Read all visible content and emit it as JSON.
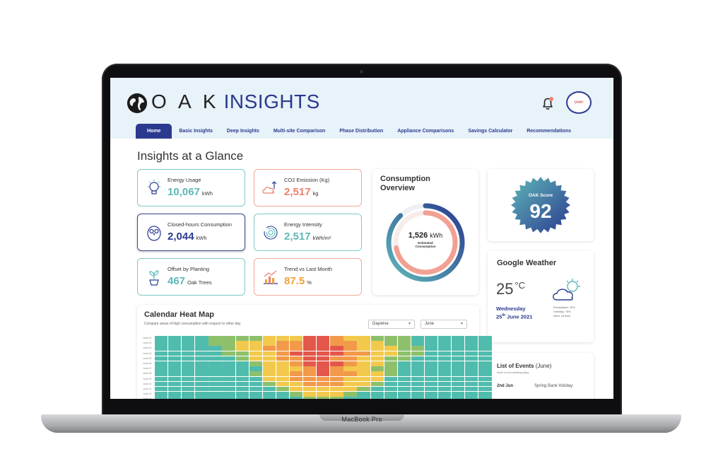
{
  "device": {
    "label": "MacBook Pro"
  },
  "app": {
    "logo_text": "O A K",
    "logo_sub": "INSIGHTS",
    "avatar_text": "oven"
  },
  "nav": {
    "tabs": [
      "Home",
      "Basic Insights",
      "Deep Insights",
      "Multi-site Comparison",
      "Phase Distribution",
      "Appliance Comparisons",
      "Savings Calculator",
      "Recommendations"
    ],
    "active": "Home"
  },
  "page": {
    "title": "Insights at a Glance"
  },
  "metrics": [
    {
      "label": "Energy Usage",
      "value": "10,067",
      "unit": "kWh",
      "icon": "bulb-icon"
    },
    {
      "label": "CO2 Emission (Kg)",
      "value": "2,517",
      "unit": "kg",
      "icon": "co2-cloud-icon"
    },
    {
      "label": "Closed-hours Consumption",
      "value": "2,044",
      "unit": "kWh",
      "icon": "owl-icon"
    },
    {
      "label": "Energy Intensity",
      "value": "2,517",
      "unit": "kWh/m²",
      "icon": "fingerprint-icon"
    },
    {
      "label": "Offset by Planting",
      "value": "467",
      "unit": "Oak Trees",
      "icon": "plant-icon"
    },
    {
      "label": "Trend vs Last Month",
      "value": "87.5",
      "unit": "%",
      "icon": "trend-chart-icon"
    }
  ],
  "consumption": {
    "title": "Consumption Overview",
    "value": "1,526",
    "unit": "kWh",
    "sublabel_1": "Estimated",
    "sublabel_2": "Consumption",
    "ring_fractions": [
      0.88,
      0.72
    ]
  },
  "oak_score": {
    "label": "OAK Score",
    "value": "92"
  },
  "weather": {
    "title": "Google Weather",
    "temp": "25",
    "unit": "°C",
    "day": "Wednesday",
    "date_day": "25",
    "date_suffix": "th",
    "date_rest": "June 2021",
    "info": [
      "Precipitation: 16%",
      "Humidity: 76%",
      "Wind: 18 km/h"
    ]
  },
  "events": {
    "title": "List of Events",
    "month": "(June)",
    "subtitle": "A list of non-working days",
    "items": [
      {
        "date": "2nd Jun",
        "name": "Spring Bank Holiday"
      }
    ]
  },
  "heatmap": {
    "title": "Calendar Heat Map",
    "subtitle": "Compare areas of high consumption with respect to other day",
    "dropdown_1": "Daywise",
    "dropdown_2": "June",
    "row_labels": [
      "June 01",
      "June 02",
      "June 03",
      "June 04",
      "June 05",
      "June 06",
      "June 07",
      "June 08",
      "June 09",
      "June 10",
      "June 11",
      "June 12",
      "June 13"
    ],
    "colors": {
      "0": "#4fbcad",
      "1": "#8ec06c",
      "2": "#f2c94c",
      "3": "#f2994a",
      "4": "#e4574b"
    },
    "levels": [
      [
        0,
        0,
        0,
        0,
        1,
        1,
        1,
        1,
        2,
        2,
        2,
        4,
        4,
        3,
        2,
        2,
        1,
        1,
        1,
        0,
        0,
        0,
        0,
        0,
        0
      ],
      [
        0,
        0,
        0,
        0,
        1,
        1,
        2,
        2,
        2,
        3,
        3,
        4,
        4,
        3,
        3,
        2,
        2,
        1,
        1,
        0,
        0,
        0,
        0,
        0,
        0
      ],
      [
        0,
        0,
        0,
        0,
        0,
        1,
        2,
        2,
        3,
        3,
        3,
        4,
        4,
        4,
        3,
        2,
        2,
        2,
        1,
        1,
        0,
        0,
        0,
        0,
        0
      ],
      [
        0,
        0,
        0,
        0,
        0,
        1,
        1,
        2,
        2,
        3,
        4,
        4,
        4,
        4,
        3,
        3,
        2,
        2,
        1,
        1,
        0,
        0,
        0,
        0,
        0
      ],
      [
        0,
        0,
        0,
        0,
        0,
        0,
        1,
        2,
        2,
        3,
        3,
        4,
        4,
        3,
        3,
        2,
        2,
        1,
        1,
        0,
        0,
        0,
        0,
        0,
        0
      ],
      [
        0,
        0,
        0,
        0,
        0,
        0,
        0,
        1,
        2,
        2,
        3,
        4,
        4,
        4,
        3,
        2,
        2,
        1,
        0,
        0,
        0,
        0,
        0,
        0,
        0
      ],
      [
        0,
        0,
        0,
        0,
        0,
        0,
        0,
        0,
        2,
        2,
        2,
        3,
        4,
        3,
        2,
        2,
        1,
        1,
        0,
        0,
        0,
        0,
        0,
        0,
        0
      ],
      [
        0,
        0,
        0,
        0,
        0,
        0,
        0,
        1,
        2,
        2,
        3,
        3,
        4,
        3,
        3,
        2,
        2,
        1,
        0,
        0,
        0,
        0,
        0,
        0,
        0
      ],
      [
        0,
        0,
        0,
        0,
        0,
        0,
        0,
        0,
        2,
        2,
        3,
        3,
        3,
        3,
        2,
        2,
        2,
        0,
        0,
        0,
        0,
        0,
        0,
        0,
        0
      ],
      [
        0,
        0,
        0,
        0,
        0,
        0,
        0,
        0,
        1,
        2,
        2,
        3,
        3,
        3,
        2,
        2,
        1,
        0,
        0,
        0,
        0,
        0,
        0,
        0,
        0
      ],
      [
        0,
        0,
        0,
        0,
        0,
        0,
        0,
        0,
        0,
        1,
        2,
        2,
        2,
        2,
        2,
        1,
        0,
        0,
        0,
        0,
        0,
        0,
        0,
        0,
        0
      ],
      [
        0,
        0,
        0,
        0,
        0,
        0,
        0,
        0,
        0,
        0,
        1,
        2,
        2,
        2,
        1,
        0,
        0,
        0,
        0,
        0,
        0,
        0,
        0,
        0,
        0
      ],
      [
        0,
        0,
        0,
        0,
        0,
        0,
        0,
        0,
        0,
        0,
        0,
        1,
        1,
        1,
        0,
        0,
        0,
        0,
        0,
        0,
        0,
        0,
        0,
        0,
        0
      ]
    ]
  }
}
